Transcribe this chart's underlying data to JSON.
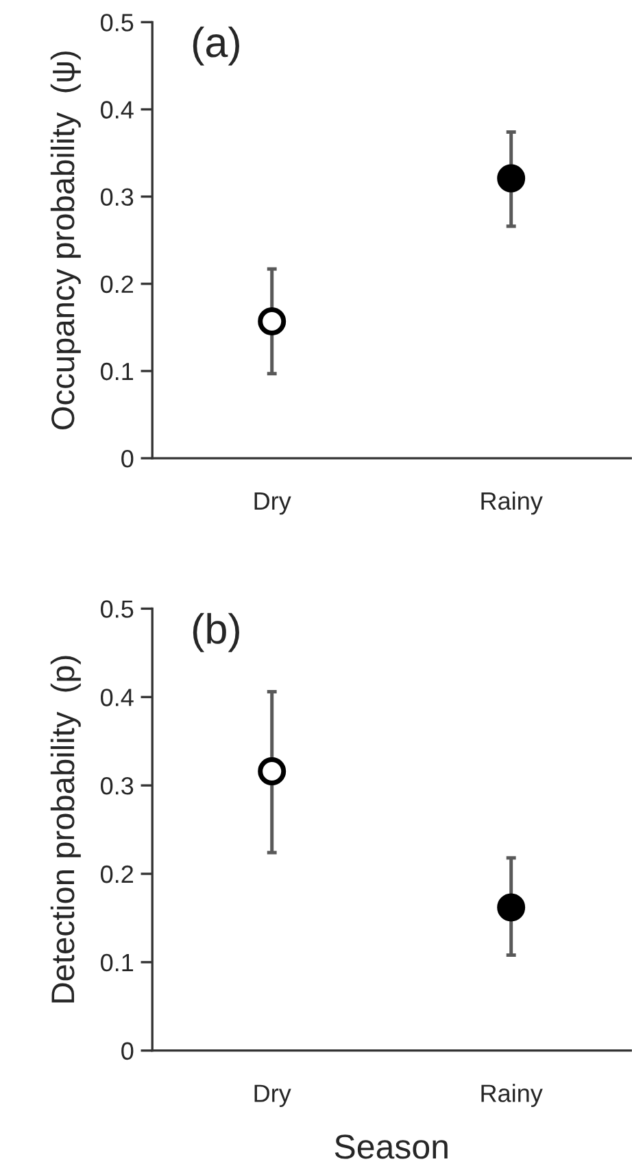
{
  "chart_data": [
    {
      "type": "scatter",
      "ylabel": "Occupancy probability  (ψ)",
      "annotations": [
        "(a)"
      ],
      "categories": [
        "Dry",
        "Rainy"
      ],
      "values": [
        0.157,
        0.321
      ],
      "errors": [
        [
          0.097,
          0.217
        ],
        [
          0.266,
          0.374
        ]
      ],
      "colors": [
        "#ffffff",
        "#000000"
      ],
      "marker": "circle",
      "ylim": [
        0,
        0.5
      ],
      "yticks": [
        0,
        0.1,
        0.2,
        0.3,
        0.4,
        0.5
      ],
      "grid": false,
      "legend": false
    },
    {
      "type": "scatter",
      "ylabel": "Detection probability  (p)",
      "xlabel": "Season",
      "annotations": [
        "(b)"
      ],
      "categories": [
        "Dry",
        "Rainy"
      ],
      "values": [
        0.316,
        0.162
      ],
      "errors": [
        [
          0.224,
          0.406
        ],
        [
          0.108,
          0.218
        ]
      ],
      "colors": [
        "#ffffff",
        "#000000"
      ],
      "marker": "circle",
      "ylim": [
        0,
        0.5
      ],
      "yticks": [
        0,
        0.1,
        0.2,
        0.3,
        0.4,
        0.5
      ],
      "grid": false,
      "legend": false
    }
  ]
}
